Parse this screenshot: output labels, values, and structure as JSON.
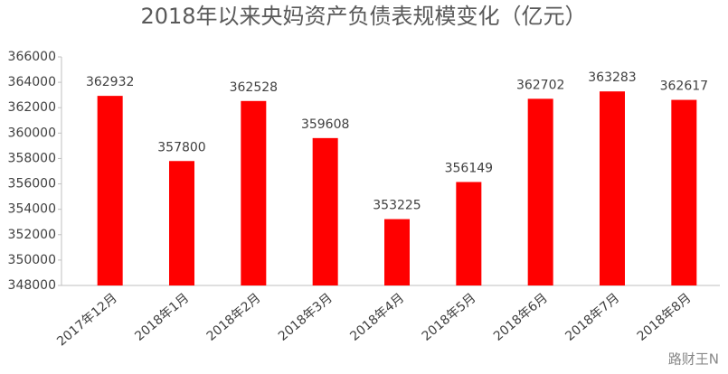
{
  "chart_data": {
    "type": "bar",
    "title": "2018年以来央妈资产负债表规模变化（亿元）",
    "categories": [
      "2017年12月",
      "2018年1月",
      "2018年2月",
      "2018年3月",
      "2018年4月",
      "2018年5月",
      "2018年6月",
      "2018年7月",
      "2018年8月"
    ],
    "values": [
      362932,
      357800,
      362528,
      359608,
      353225,
      356149,
      362702,
      363283,
      362617
    ],
    "color": "#ff0000",
    "ylim": [
      348000,
      366000
    ],
    "yticks": [
      348000,
      350000,
      352000,
      354000,
      356000,
      358000,
      360000,
      362000,
      364000,
      366000
    ],
    "grid": false,
    "watermark": "路财王N"
  }
}
